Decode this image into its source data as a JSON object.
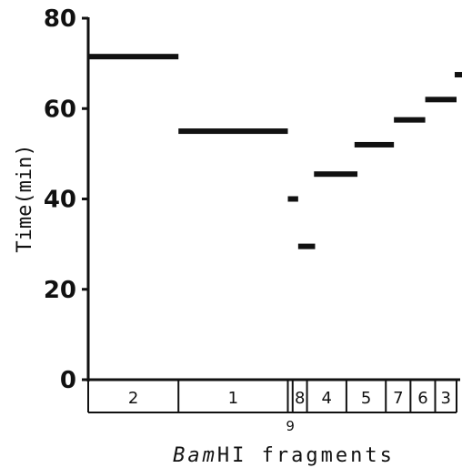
{
  "chart_data": {
    "type": "bar",
    "xlabel": {
      "italic": "Bam",
      "rest": "HI fragments"
    },
    "ylabel": "Time(min)",
    "ylim": [
      0,
      80
    ],
    "yticks": [
      {
        "value": 0,
        "label": "0"
      },
      {
        "value": 20,
        "label": "20"
      },
      {
        "value": 40,
        "label": "40"
      },
      {
        "value": 60,
        "label": "60"
      },
      {
        "value": 80,
        "label": "80"
      }
    ],
    "fragments": [
      {
        "label": "2",
        "start": 0.0,
        "end": 0.245
      },
      {
        "label": "1",
        "start": 0.245,
        "end": 0.542
      },
      {
        "label": "9",
        "start": 0.542,
        "end": 0.555
      },
      {
        "label": "8",
        "start": 0.555,
        "end": 0.594
      },
      {
        "label": "4",
        "start": 0.594,
        "end": 0.701
      },
      {
        "label": "5",
        "start": 0.701,
        "end": 0.808
      },
      {
        "label": "7",
        "start": 0.808,
        "end": 0.875
      },
      {
        "label": "6",
        "start": 0.875,
        "end": 0.942
      },
      {
        "label": "3",
        "start": 0.942,
        "end": 1.0
      }
    ],
    "series": [
      {
        "fragment": "2",
        "time": 71.5,
        "start": 0.0,
        "end": 0.245
      },
      {
        "fragment": "1",
        "time": 55,
        "start": 0.245,
        "end": 0.542
      },
      {
        "fragment": "9",
        "time": 40,
        "start": 0.542,
        "end": 0.57
      },
      {
        "fragment": "8",
        "time": 29.5,
        "start": 0.57,
        "end": 0.616
      },
      {
        "fragment": "4",
        "time": 45.5,
        "start": 0.613,
        "end": 0.731
      },
      {
        "fragment": "5",
        "time": 52,
        "start": 0.723,
        "end": 0.83
      },
      {
        "fragment": "7",
        "time": 57.5,
        "start": 0.83,
        "end": 0.915
      },
      {
        "fragment": "6",
        "time": 62,
        "start": 0.915,
        "end": 1.0
      },
      {
        "fragment": "3",
        "time": 67.5,
        "start": 0.995,
        "end": 1.095
      }
    ]
  }
}
